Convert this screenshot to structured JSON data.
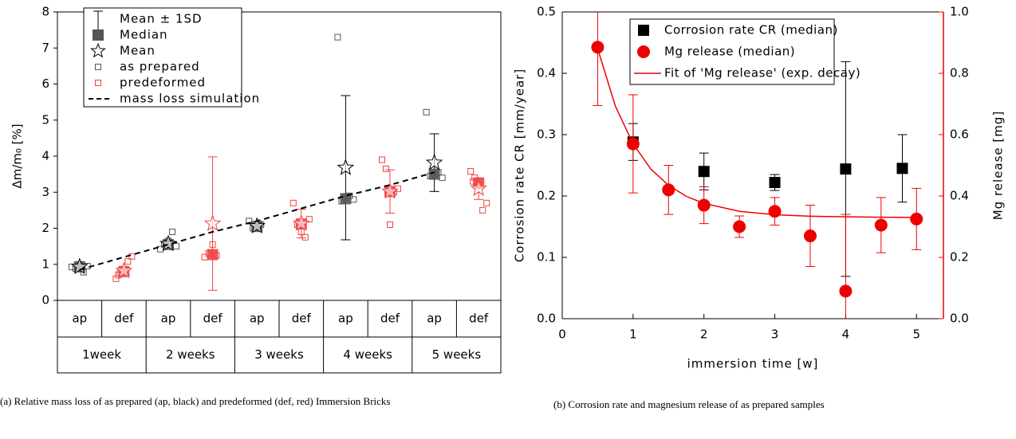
{
  "chart_data": [
    {
      "type": "box",
      "ylabel": "Δm/m₀ [%]",
      "ylim": [
        0,
        8
      ],
      "yticks": [
        0,
        1,
        2,
        3,
        4,
        5,
        6,
        7,
        8
      ],
      "categories": [
        "ap",
        "def",
        "ap",
        "def",
        "ap",
        "def",
        "ap",
        "def",
        "ap",
        "def"
      ],
      "groups": [
        "1week",
        "2 weeks",
        "3 weeks",
        "4 weeks",
        "5 weeks"
      ],
      "error_bars": {
        "name": "Mean ± 1SD",
        "errors": [
          0.08,
          0.12,
          0.1,
          1.85,
          0.08,
          0.4,
          2.0,
          0.6,
          0.8,
          0.3
        ]
      },
      "median": {
        "name": "Median",
        "values": [
          0.93,
          0.8,
          1.55,
          1.27,
          2.05,
          2.12,
          2.82,
          3.02,
          3.5,
          3.25
        ]
      },
      "mean": {
        "name": "Mean",
        "values": [
          0.93,
          0.82,
          1.57,
          2.13,
          2.06,
          2.13,
          3.68,
          3.02,
          3.82,
          3.1
        ]
      },
      "point_legend": [
        {
          "name": "as prepared",
          "color": "#555555"
        },
        {
          "name": "predeformed",
          "color": "#ee4444"
        }
      ],
      "points": [
        [
          0.93,
          0.88,
          1.0,
          0.78,
          0.95
        ],
        [
          0.6,
          0.75,
          0.85,
          1.08,
          1.22,
          0.7
        ],
        [
          1.42,
          1.55,
          1.65,
          1.9,
          1.5
        ],
        [
          1.2,
          1.3,
          1.55,
          1.25
        ],
        [
          2.2,
          2.0,
          2.05,
          2.1
        ],
        [
          2.7,
          2.1,
          1.9,
          1.75,
          2.25
        ],
        [
          7.3,
          2.75,
          2.85,
          2.9,
          2.8
        ],
        [
          3.9,
          3.65,
          2.1,
          3.0,
          3.1
        ],
        [
          5.22,
          3.45,
          3.5,
          3.55,
          3.4
        ],
        [
          3.58,
          3.4,
          3.2,
          2.5,
          2.7,
          3.3
        ]
      ],
      "simulation": {
        "name": "mass loss simulation",
        "color": "#000000",
        "values": [
          0.85,
          1.2,
          1.55,
          1.9,
          2.2,
          2.55,
          2.9,
          3.2,
          3.55,
          null
        ]
      },
      "caption": "(a) Relative mass loss of as prepared (ap, black) and predeformed (def, red) Immersion Bricks"
    },
    {
      "type": "scatter",
      "xlabel": "immersion time [w]",
      "ylabel": "Corrosion rate CR [mm/year]",
      "y2label": "Mg release [mg]",
      "xlim": [
        0,
        5.38
      ],
      "xticks": [
        0,
        1,
        2,
        3,
        4,
        5
      ],
      "ylim": [
        0,
        0.5
      ],
      "yticks": [
        {
          "value": 0,
          "label": "0.0"
        },
        0.1,
        0.2,
        0.3,
        0.4,
        0.5
      ],
      "y2lim": [
        0,
        1
      ],
      "y2ticks": [
        {
          "value": 0,
          "label": "0.0"
        },
        0.2,
        0.4,
        0.6,
        0.8,
        {
          "value": 1,
          "label": "1.0"
        }
      ],
      "y2color": "#ee0000",
      "series": [
        {
          "name": "Corrosion rate CR (median)",
          "color": "#000000",
          "marker": "square",
          "x": [
            1,
            2,
            3,
            4,
            4.8
          ],
          "values": [
            0.288,
            0.24,
            0.222,
            0.244,
            0.245
          ],
          "errors": [
            0.03,
            0.03,
            0.013,
            0.175,
            0.055
          ]
        },
        {
          "name": "Mg release (median)",
          "color": "#ee0000",
          "marker": "circle",
          "axis": "y2",
          "x": [
            0.5,
            1,
            1.5,
            2,
            2.5,
            3,
            3.5,
            4,
            4.5,
            5
          ],
          "values": [
            0.885,
            0.57,
            0.42,
            0.37,
            0.3,
            0.35,
            0.27,
            0.09,
            0.305,
            0.325
          ],
          "errors": [
            0.19,
            0.16,
            0.08,
            0.06,
            0.035,
            0.045,
            0.1,
            0.25,
            0.09,
            0.1
          ]
        },
        {
          "name": "Fit of 'Mg release' (exp. decay)",
          "color": "#ee0000",
          "marker": "line",
          "axis": "y2",
          "x": [
            0.5,
            0.75,
            1,
            1.25,
            1.5,
            1.75,
            2,
            2.5,
            3,
            3.5,
            4,
            4.5,
            5
          ],
          "values": [
            0.88,
            0.693,
            0.57,
            0.488,
            0.435,
            0.399,
            0.376,
            0.35,
            0.339,
            0.334,
            0.332,
            0.331,
            0.33
          ]
        }
      ],
      "caption": "(b) Corrosion rate and magnesium release of as prepared samples"
    }
  ]
}
